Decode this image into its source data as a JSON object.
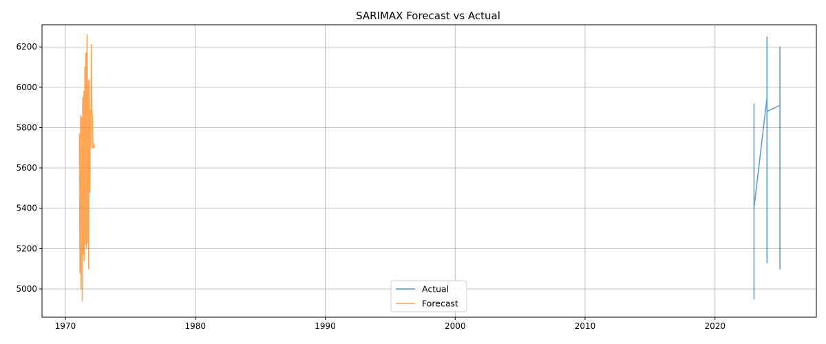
{
  "chart_data": {
    "type": "line",
    "title": "SARIMAX Forecast vs Actual",
    "xlabel": "",
    "ylabel": "",
    "xlim": [
      1968.2,
      2027.8
    ],
    "ylim": [
      4860,
      6310
    ],
    "x_ticks": [
      1970,
      1980,
      1990,
      2000,
      2010,
      2020
    ],
    "x_tick_labels": [
      "1970",
      "1980",
      "1990",
      "2000",
      "2010",
      "2020"
    ],
    "y_ticks": [
      5000,
      5200,
      5400,
      5600,
      5800,
      6000,
      6200
    ],
    "y_tick_labels": [
      "5000",
      "5200",
      "5400",
      "5600",
      "5800",
      "6000",
      "6200"
    ],
    "grid": true,
    "legend_position": "lower-center",
    "series": [
      {
        "name": "Actual",
        "color": "#1f77b4",
        "x": [
          2023.0,
          2023.0,
          2023.0,
          2023.0,
          2023.0,
          2023.0,
          2024.0,
          2024.0,
          2024.0,
          2024.0,
          2024.0,
          2025.0,
          2025.0,
          2025.0,
          2025.0
        ],
        "y": [
          5920,
          4950,
          5900,
          4960,
          5390,
          5400,
          5950,
          5130,
          6250,
          5140,
          5880,
          5910,
          5100,
          6200,
          5910
        ]
      },
      {
        "name": "Forecast",
        "color": "#ff7f0e",
        "x": [
          1971.08,
          1971.12,
          1971.17,
          1971.2,
          1971.25,
          1971.3,
          1971.33,
          1971.38,
          1971.42,
          1971.46,
          1971.5,
          1971.54,
          1971.58,
          1971.62,
          1971.67,
          1971.71,
          1971.75,
          1971.79,
          1971.83,
          1971.88,
          1971.92,
          1971.96,
          1972.0,
          1972.04,
          1972.08,
          1972.12,
          1972.17,
          1972.2,
          1972.25
        ],
        "y": [
          5770,
          5080,
          5860,
          5000,
          5850,
          4940,
          5950,
          5170,
          5980,
          5140,
          6100,
          5220,
          6170,
          5200,
          6260,
          5230,
          6030,
          5100,
          6040,
          5480,
          5890,
          5700,
          6210,
          5870,
          5870,
          5700,
          5720,
          5700,
          5710
        ]
      }
    ]
  }
}
